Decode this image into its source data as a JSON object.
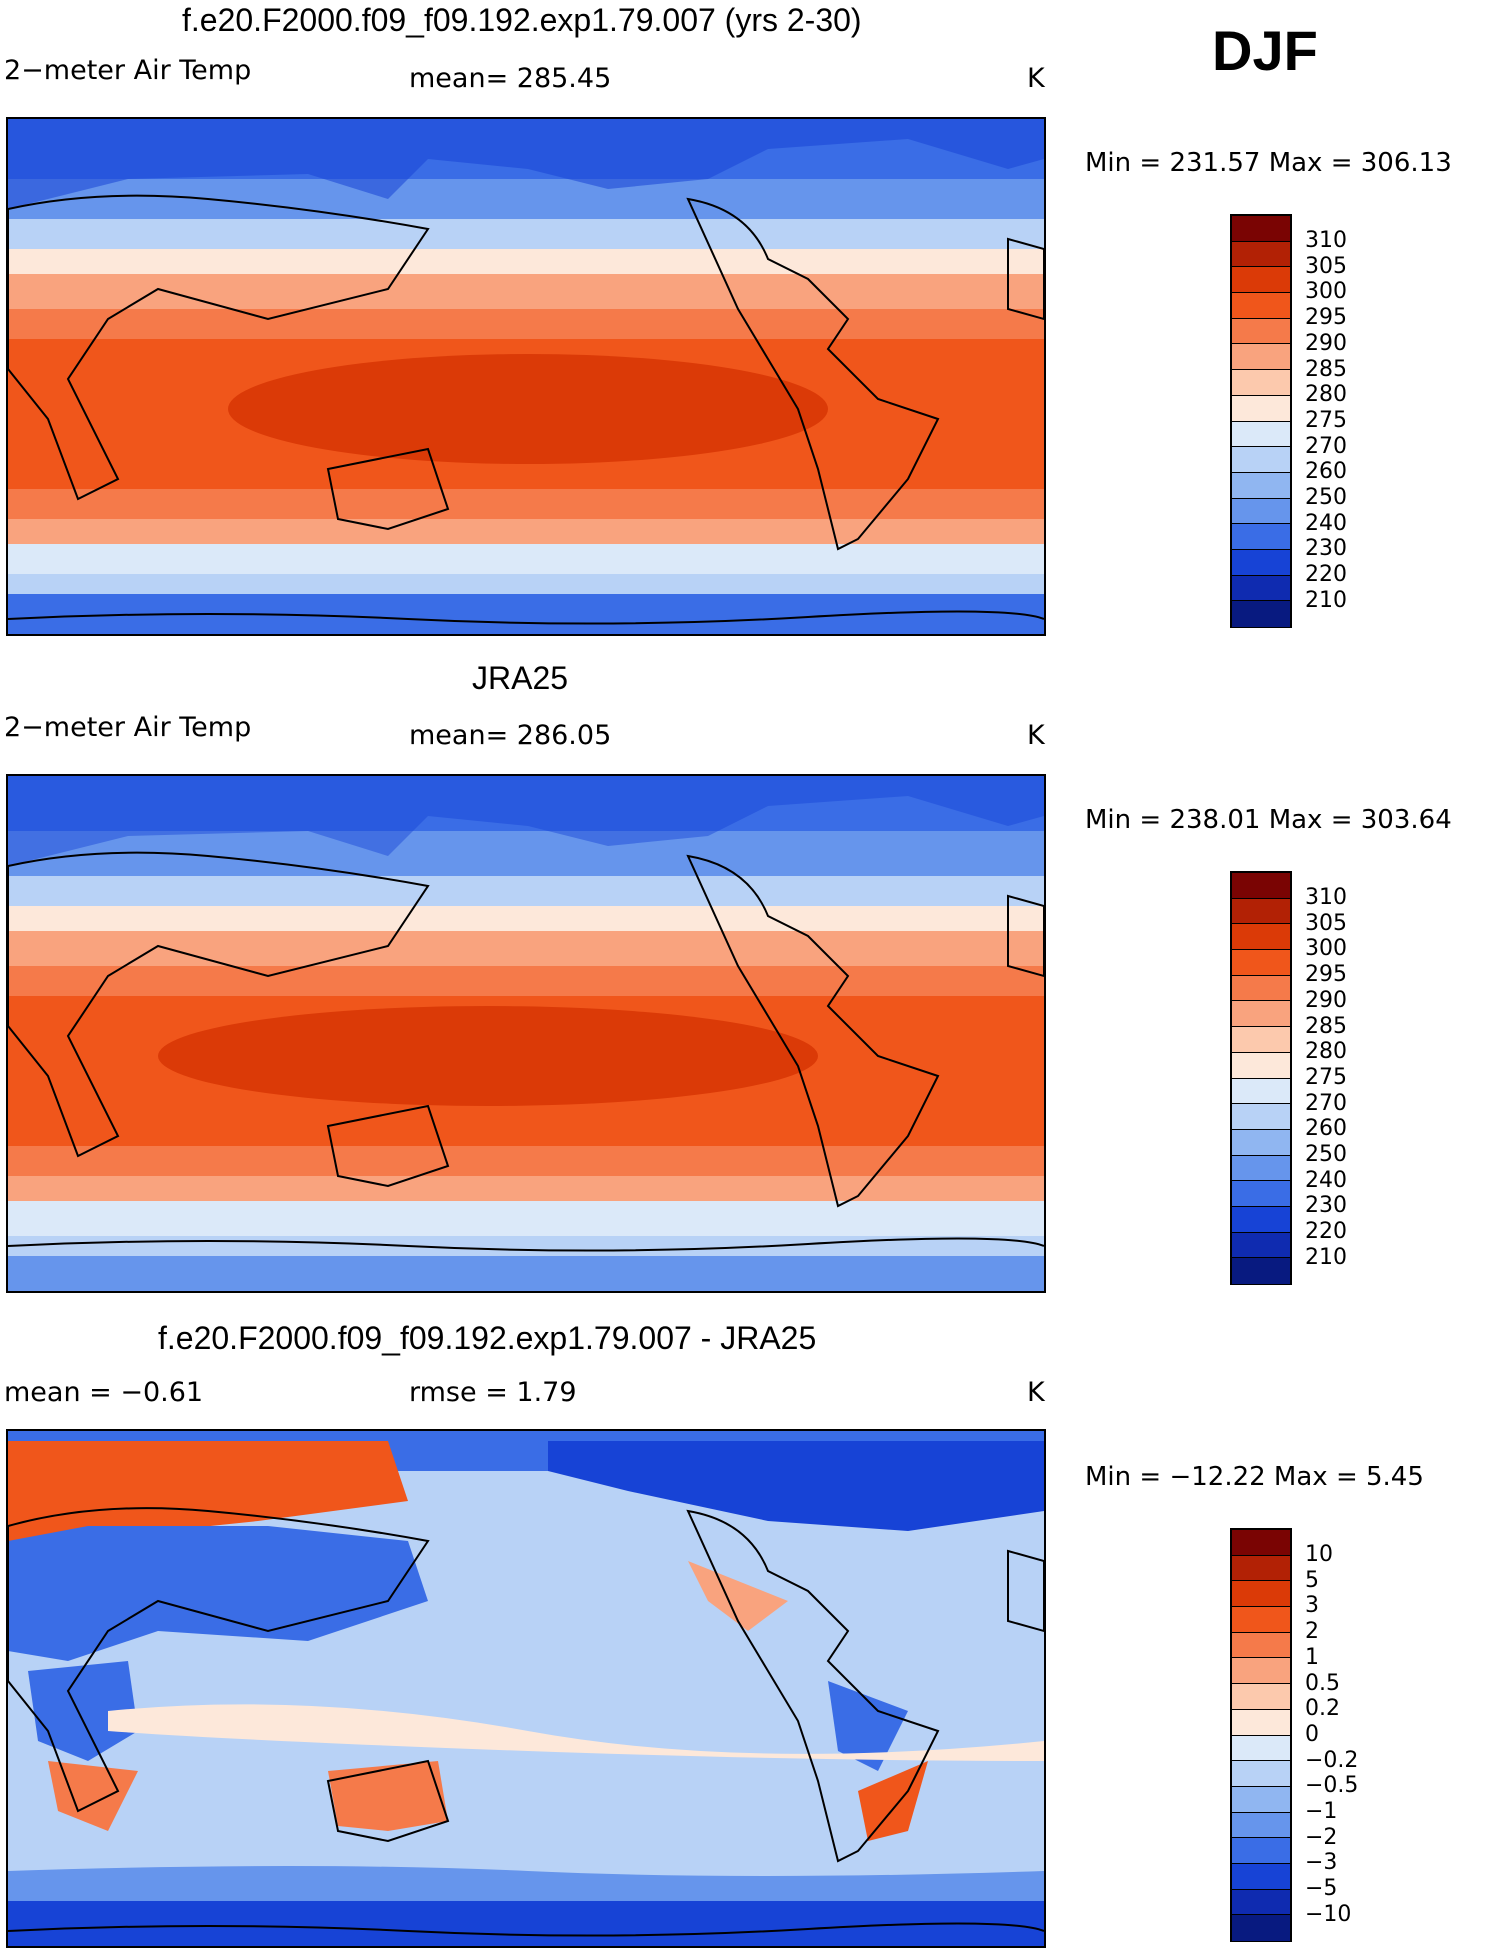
{
  "season": "DJF",
  "units": "K",
  "panels": [
    {
      "title": "f.e20.F2000.f09_f09.192.exp1.79.007 (yrs 2-30)",
      "left_label": "2−meter Air Temp",
      "stat_label": "mean=  285.45",
      "units": "K",
      "minmax": "Min  =  231.57  Max  =  306.13",
      "field": "model"
    },
    {
      "title": "JRA25",
      "left_label": "2−meter Air Temp",
      "stat_label": "mean=  286.05",
      "units": "K",
      "minmax": "Min  =  238.01  Max  =  303.64",
      "field": "obs"
    },
    {
      "title": "f.e20.F2000.f09_f09.192.exp1.79.007 - JRA25",
      "left_label": "mean  =    −0.61",
      "stat_label": "rmse  =     1.79",
      "units": "K",
      "minmax": "Min  =  −12.22  Max  =      5.45",
      "field": "diff"
    }
  ],
  "colorbar_abs": {
    "labels": [
      "310",
      "305",
      "300",
      "295",
      "290",
      "285",
      "280",
      "275",
      "270",
      "260",
      "250",
      "240",
      "230",
      "220",
      "210"
    ],
    "colors": [
      "#7a0403",
      "#b22105",
      "#db3a07",
      "#f0561b",
      "#f57a4a",
      "#f9a37e",
      "#fcc9ad",
      "#fde8da",
      "#dbe9f9",
      "#b8d2f6",
      "#90b6f1",
      "#6695ec",
      "#3a6de6",
      "#1743d6",
      "#0f2bb0",
      "#081a80"
    ]
  },
  "colorbar_diff": {
    "labels": [
      "10",
      "5",
      "3",
      "2",
      "1",
      "0.5",
      "0.2",
      "0",
      "−0.2",
      "−0.5",
      "−1",
      "−2",
      "−3",
      "−5",
      "−10"
    ],
    "colors": [
      "#7a0403",
      "#b22105",
      "#db3a07",
      "#f0561b",
      "#f57a4a",
      "#f9a37e",
      "#fcc9ad",
      "#fde8da",
      "#dbe9f9",
      "#b8d2f6",
      "#90b6f1",
      "#6695ec",
      "#3a6de6",
      "#1743d6",
      "#0f2bb0",
      "#081a80"
    ]
  }
}
